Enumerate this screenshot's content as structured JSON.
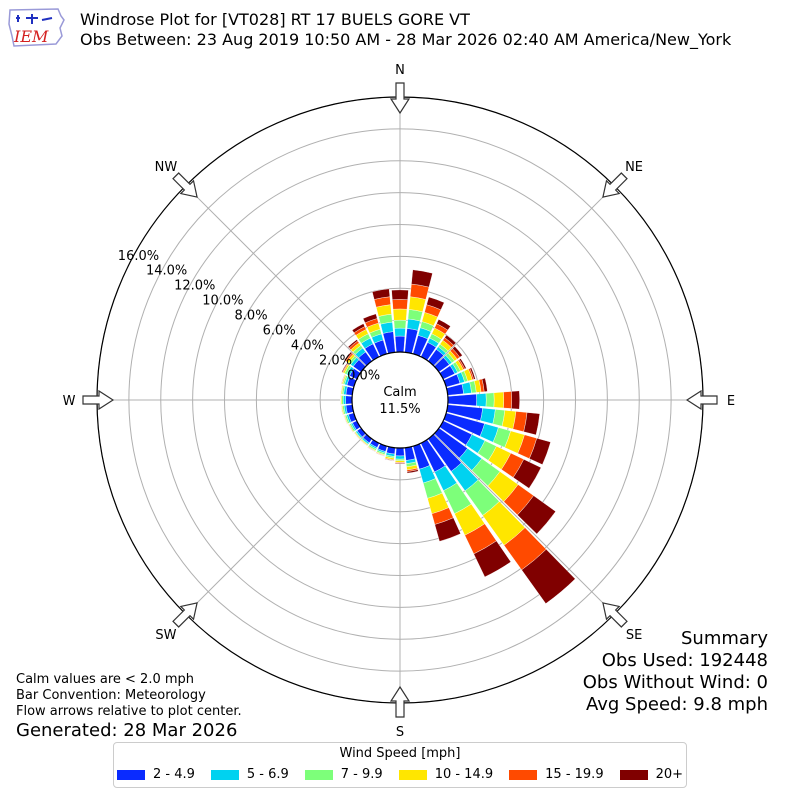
{
  "header": {
    "title": "Windrose Plot for [VT028] RT 17 BUELS GORE  VT",
    "subtitle": "Obs Between: 23 Aug 2019 10:50 AM - 28 Mar 2026 02:40 AM America/New_York",
    "logo_text": "IEM"
  },
  "summary": {
    "heading": "Summary",
    "obs_used": "Obs Used: 192448",
    "obs_without_wind": "Obs Without Wind: 0",
    "avg_speed": "Avg Speed: 9.8 mph"
  },
  "notes": {
    "calm": "Calm values are < 2.0 mph",
    "convention": "Bar Convention: Meteorology",
    "flow": "Flow arrows relative to plot center.",
    "generated": "Generated: 28 Mar 2026"
  },
  "legend": {
    "title": "Wind Speed [mph]",
    "items": [
      {
        "label": "2 - 4.9",
        "color": "#0a2bff"
      },
      {
        "label": "5 - 6.9",
        "color": "#00d2f0"
      },
      {
        "label": "7 - 9.9",
        "color": "#7dff7a"
      },
      {
        "label": "10 - 14.9",
        "color": "#ffe600"
      },
      {
        "label": "15 - 19.9",
        "color": "#ff4a00"
      },
      {
        "label": "20+",
        "color": "#800000"
      }
    ]
  },
  "chart_data": {
    "type": "windrose",
    "radial_unit": "percent",
    "calm_label": "Calm",
    "calm_value": "11.5%",
    "calm_percent": 11.5,
    "radial_range": [
      0,
      16
    ],
    "radial_ticks": [
      "0.0%",
      "2.0%",
      "4.0%",
      "6.0%",
      "8.0%",
      "10.0%",
      "12.0%",
      "14.0%",
      "16.0%"
    ],
    "direction_labels": [
      "N",
      "NE",
      "E",
      "SE",
      "S",
      "SW",
      "W",
      "NW"
    ],
    "speed_bins": [
      "2 - 4.9",
      "5 - 6.9",
      "7 - 9.9",
      "10 - 14.9",
      "15 - 19.9",
      "20+"
    ],
    "sector_width_deg": 10,
    "sectors": [
      {
        "dir": 0,
        "values": [
          1.0,
          0.5,
          0.5,
          0.7,
          0.6,
          0.6
        ]
      },
      {
        "dir": 10,
        "values": [
          1.5,
          0.6,
          0.6,
          0.8,
          0.8,
          0.9
        ]
      },
      {
        "dir": 20,
        "values": [
          1.2,
          0.5,
          0.4,
          0.6,
          0.5,
          0.5
        ]
      },
      {
        "dir": 30,
        "values": [
          1.0,
          0.3,
          0.3,
          0.4,
          0.3,
          0.3
        ]
      },
      {
        "dir": 40,
        "values": [
          0.9,
          0.2,
          0.2,
          0.3,
          0.2,
          0.2
        ]
      },
      {
        "dir": 50,
        "values": [
          0.8,
          0.2,
          0.2,
          0.2,
          0.2,
          0.2
        ]
      },
      {
        "dir": 60,
        "values": [
          0.8,
          0.2,
          0.2,
          0.2,
          0.1,
          0.1
        ]
      },
      {
        "dir": 70,
        "values": [
          0.9,
          0.3,
          0.2,
          0.3,
          0.1,
          0.1
        ]
      },
      {
        "dir": 80,
        "values": [
          1.0,
          0.5,
          0.3,
          0.3,
          0.2,
          0.2
        ]
      },
      {
        "dir": 90,
        "values": [
          1.8,
          0.6,
          0.5,
          0.6,
          0.5,
          0.5
        ]
      },
      {
        "dir": 100,
        "values": [
          2.2,
          0.8,
          0.6,
          0.7,
          0.7,
          0.8
        ]
      },
      {
        "dir": 110,
        "values": [
          2.5,
          0.9,
          0.8,
          0.9,
          0.8,
          0.9
        ]
      },
      {
        "dir": 120,
        "values": [
          2.0,
          0.9,
          0.8,
          1.0,
          0.9,
          1.2
        ]
      },
      {
        "dir": 130,
        "values": [
          2.2,
          1.1,
          1.4,
          1.4,
          1.2,
          1.7
        ]
      },
      {
        "dir": 140,
        "values": [
          2.5,
          1.5,
          1.9,
          2.3,
          1.9,
          2.6
        ]
      },
      {
        "dir": 150,
        "values": [
          2.0,
          1.3,
          1.6,
          1.5,
          1.3,
          1.6
        ]
      },
      {
        "dir": 160,
        "values": [
          1.5,
          0.9,
          1.0,
          1.0,
          0.7,
          1.1
        ]
      },
      {
        "dir": 170,
        "values": [
          0.8,
          0.2,
          0.2,
          0.2,
          0.1,
          0.1
        ]
      },
      {
        "dir": 180,
        "values": [
          0.5,
          0.2,
          0.1,
          0.1,
          0.05,
          0.05
        ]
      },
      {
        "dir": 190,
        "values": [
          0.4,
          0.15,
          0.1,
          0.1,
          0.05,
          0.03
        ]
      },
      {
        "dir": 200,
        "values": [
          0.35,
          0.1,
          0.1,
          0.05,
          0.03,
          0.02
        ]
      },
      {
        "dir": 210,
        "values": [
          0.3,
          0.1,
          0.1,
          0.05,
          0.02,
          0.02
        ]
      },
      {
        "dir": 220,
        "values": [
          0.3,
          0.1,
          0.05,
          0.05,
          0.02,
          0.01
        ]
      },
      {
        "dir": 230,
        "values": [
          0.3,
          0.1,
          0.05,
          0.05,
          0.02,
          0.01
        ]
      },
      {
        "dir": 240,
        "values": [
          0.3,
          0.1,
          0.1,
          0.05,
          0.02,
          0.01
        ]
      },
      {
        "dir": 250,
        "values": [
          0.35,
          0.12,
          0.1,
          0.05,
          0.02,
          0.01
        ]
      },
      {
        "dir": 260,
        "values": [
          0.4,
          0.12,
          0.1,
          0.06,
          0.02,
          0.01
        ]
      },
      {
        "dir": 270,
        "values": [
          0.4,
          0.15,
          0.1,
          0.06,
          0.02,
          0.01
        ]
      },
      {
        "dir": 280,
        "values": [
          0.4,
          0.15,
          0.1,
          0.06,
          0.02,
          0.01
        ]
      },
      {
        "dir": 290,
        "values": [
          0.45,
          0.15,
          0.1,
          0.07,
          0.03,
          0.02
        ]
      },
      {
        "dir": 300,
        "values": [
          0.5,
          0.2,
          0.15,
          0.1,
          0.05,
          0.05
        ]
      },
      {
        "dir": 310,
        "values": [
          0.6,
          0.2,
          0.15,
          0.15,
          0.1,
          0.1
        ]
      },
      {
        "dir": 320,
        "values": [
          0.7,
          0.3,
          0.2,
          0.2,
          0.15,
          0.1
        ]
      },
      {
        "dir": 330,
        "values": [
          0.9,
          0.4,
          0.3,
          0.3,
          0.2,
          0.2
        ]
      },
      {
        "dir": 340,
        "values": [
          0.9,
          0.4,
          0.3,
          0.4,
          0.3,
          0.3
        ]
      },
      {
        "dir": 350,
        "values": [
          1.3,
          0.6,
          0.5,
          0.6,
          0.5,
          0.5
        ]
      }
    ]
  }
}
